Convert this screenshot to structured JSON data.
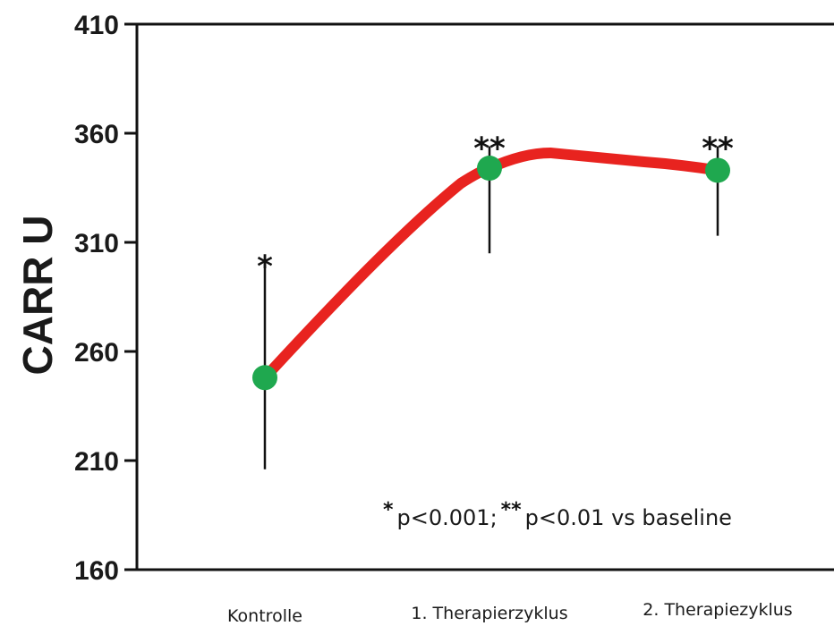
{
  "chart_data": {
    "type": "line",
    "title": "",
    "xlabel": "",
    "ylabel": "CARR U",
    "categories": [
      "Kontrolle",
      "1. Therapierzyklus",
      "2. Therapiezyklus"
    ],
    "values": [
      248,
      344,
      343
    ],
    "error_bars": [
      {
        "low": 206,
        "high": 300
      },
      {
        "low": 305,
        "high": 354
      },
      {
        "low": 313,
        "high": 354
      }
    ],
    "significance": [
      "*",
      "**",
      "**"
    ],
    "ylim": [
      160,
      410
    ],
    "yticks": [
      "160",
      "210",
      "260",
      "310",
      "360",
      "410"
    ],
    "grid": false,
    "line_color": "#e8231f",
    "marker_color": "#1fa84f",
    "note": {
      "star_single": "*",
      "text_1": "p<0.001;",
      "star_double": "**",
      "text_2": " p<0.01 vs baseline"
    }
  }
}
